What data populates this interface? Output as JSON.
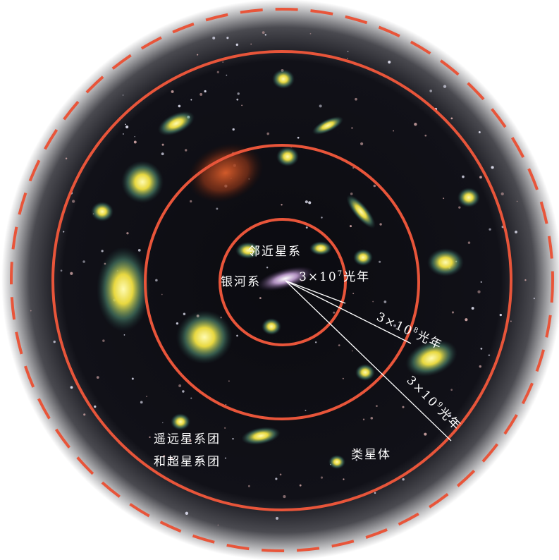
{
  "labels": {
    "nearby_galaxies": "邻近星系",
    "milky_way": "银河系",
    "distant_clusters_line1": "遥远星系团",
    "distant_clusters_line2": "和超星系团",
    "quasars": "类星体"
  },
  "distances": [
    {
      "base": "3×10",
      "exponent": "7",
      "unit": "光年"
    },
    {
      "base": "3×10",
      "exponent": "8",
      "unit": "光年"
    },
    {
      "base": "3×10",
      "exponent": "9",
      "unit": "光年"
    }
  ]
}
